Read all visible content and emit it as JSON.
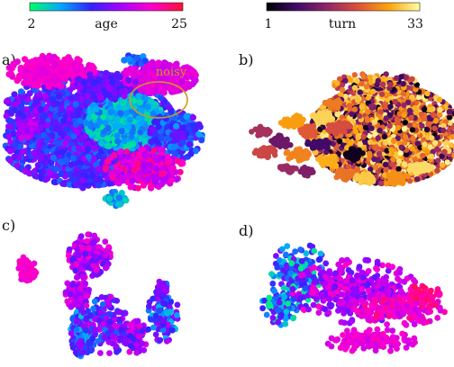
{
  "colorbars": [
    {
      "label": "age",
      "min_label": "2",
      "max_label": "25",
      "range": [
        2,
        25
      ],
      "stops": [
        "#00ff66",
        "#00aaff",
        "#3322ff",
        "#aa00ff",
        "#ff00cc",
        "#ff1133"
      ]
    },
    {
      "label": "turn",
      "min_label": "1",
      "max_label": "33",
      "range": [
        1,
        33
      ],
      "stops": [
        "#000004",
        "#420a68",
        "#932667",
        "#dd513a",
        "#fca50a",
        "#fcffa4"
      ]
    }
  ],
  "panels": [
    {
      "label": "a)",
      "colormap": "age",
      "annotation": "noisy"
    },
    {
      "label": "b)",
      "colormap": "turn",
      "annotation": ""
    },
    {
      "label": "c)",
      "colormap": "age",
      "annotation": ""
    },
    {
      "label": "d)",
      "colormap": "age",
      "annotation": ""
    }
  ],
  "chart_data": [
    {
      "type": "scatter",
      "panel": "a)",
      "title": "",
      "xlabel": "",
      "ylabel": "",
      "color_by": "age",
      "annotation": "noisy",
      "clusters": [
        {
          "cx": -0.2,
          "cy": 0.05,
          "sx": 0.42,
          "sy": 0.33,
          "n": 2600,
          "c": [
            0.28,
            0.62
          ]
        },
        {
          "cx": 0.2,
          "cy": 0.15,
          "sx": 0.18,
          "sy": 0.16,
          "n": 600,
          "c": [
            0.05,
            0.3
          ]
        },
        {
          "cx": -0.55,
          "cy": 0.8,
          "sx": 0.2,
          "sy": 0.09,
          "n": 300,
          "c": [
            0.72,
            0.82
          ]
        },
        {
          "cx": 0.55,
          "cy": 0.72,
          "sx": 0.17,
          "sy": 0.09,
          "n": 300,
          "c": [
            0.66,
            0.78
          ]
        },
        {
          "cx": 0.72,
          "cy": -0.03,
          "sx": 0.12,
          "sy": 0.14,
          "n": 350,
          "c": [
            0.2,
            0.55
          ]
        },
        {
          "cx": 0.4,
          "cy": -0.45,
          "sx": 0.18,
          "sy": 0.12,
          "n": 300,
          "c": [
            0.6,
            0.9
          ]
        },
        {
          "cx": -0.2,
          "cy": -0.6,
          "sx": 0.08,
          "sy": 0.05,
          "n": 60,
          "c": [
            0.35,
            0.55
          ]
        },
        {
          "cx": -0.8,
          "cy": 0.05,
          "sx": 0.05,
          "sy": 0.06,
          "n": 40,
          "c": [
            0.55,
            0.7
          ]
        },
        {
          "cx": 0.1,
          "cy": -0.85,
          "sx": 0.06,
          "sy": 0.04,
          "n": 40,
          "c": [
            0.1,
            0.3
          ]
        },
        {
          "cx": 0.3,
          "cy": 0.95,
          "sx": 0.05,
          "sy": 0.03,
          "n": 25,
          "c": [
            0.2,
            0.4
          ]
        },
        {
          "cx": 0.0,
          "cy": 0.6,
          "sx": 0.15,
          "sy": 0.08,
          "n": 150,
          "c": [
            0.4,
            0.6
          ]
        }
      ]
    },
    {
      "type": "scatter",
      "panel": "b)",
      "title": "",
      "xlabel": "",
      "ylabel": "",
      "color_by": "turn",
      "clusters": [
        {
          "cx": 0.35,
          "cy": 0.1,
          "sx": 0.33,
          "sy": 0.33,
          "n": 2500,
          "c": [
            0.0,
            0.95
          ],
          "mode": "mixed"
        },
        {
          "cx": 0.25,
          "cy": 0.85,
          "sx": 0.18,
          "sy": 0.07,
          "n": 200,
          "c": [
            0.0,
            0.9
          ],
          "mode": "mixed"
        },
        {
          "cx": -0.4,
          "cy": 0.15,
          "sx": 0.05,
          "sy": 0.04,
          "n": 45,
          "c": [
            0.62,
            0.62
          ]
        },
        {
          "cx": -0.55,
          "cy": 0.3,
          "sx": 0.05,
          "sy": 0.04,
          "n": 45,
          "c": [
            0.78,
            0.78
          ]
        },
        {
          "cx": -0.25,
          "cy": 0.35,
          "sx": 0.05,
          "sy": 0.04,
          "n": 45,
          "c": [
            0.9,
            0.9
          ]
        },
        {
          "cx": -0.65,
          "cy": 0.0,
          "sx": 0.05,
          "sy": 0.04,
          "n": 45,
          "c": [
            0.3,
            0.3
          ]
        },
        {
          "cx": -0.5,
          "cy": -0.2,
          "sx": 0.05,
          "sy": 0.04,
          "n": 45,
          "c": [
            0.72,
            0.72
          ]
        },
        {
          "cx": -0.3,
          "cy": -0.05,
          "sx": 0.05,
          "sy": 0.04,
          "n": 45,
          "c": [
            0.2,
            0.2
          ]
        },
        {
          "cx": -0.8,
          "cy": -0.15,
          "sx": 0.05,
          "sy": 0.04,
          "n": 45,
          "c": [
            0.55,
            0.55
          ]
        },
        {
          "cx": -0.85,
          "cy": 0.15,
          "sx": 0.04,
          "sy": 0.03,
          "n": 30,
          "c": [
            0.45,
            0.45
          ]
        },
        {
          "cx": -0.2,
          "cy": -0.3,
          "sx": 0.05,
          "sy": 0.04,
          "n": 45,
          "c": [
            0.82,
            0.82
          ]
        },
        {
          "cx": -0.05,
          "cy": -0.5,
          "sx": 0.05,
          "sy": 0.04,
          "n": 45,
          "c": [
            0.68,
            0.68
          ]
        },
        {
          "cx": 0.15,
          "cy": -0.55,
          "sx": 0.05,
          "sy": 0.04,
          "n": 45,
          "c": [
            0.88,
            0.88
          ]
        },
        {
          "cx": 0.45,
          "cy": -0.55,
          "sx": 0.05,
          "sy": 0.04,
          "n": 45,
          "c": [
            0.75,
            0.75
          ]
        },
        {
          "cx": 0.68,
          "cy": -0.4,
          "sx": 0.05,
          "sy": 0.04,
          "n": 45,
          "c": [
            0.92,
            0.92
          ]
        },
        {
          "cx": -0.4,
          "cy": -0.45,
          "sx": 0.04,
          "sy": 0.03,
          "n": 35,
          "c": [
            0.35,
            0.35
          ]
        },
        {
          "cx": -0.1,
          "cy": 0.2,
          "sx": 0.05,
          "sy": 0.04,
          "n": 40,
          "c": [
            0.58,
            0.58
          ]
        },
        {
          "cx": -0.15,
          "cy": 0.55,
          "sx": 0.04,
          "sy": 0.03,
          "n": 30,
          "c": [
            0.7,
            0.7
          ]
        },
        {
          "cx": -0.6,
          "cy": -0.4,
          "sx": 0.04,
          "sy": 0.03,
          "n": 30,
          "c": [
            0.42,
            0.42
          ]
        },
        {
          "cx": 0.02,
          "cy": -0.2,
          "sx": 0.05,
          "sy": 0.04,
          "n": 40,
          "c": [
            0.05,
            0.05
          ]
        }
      ]
    },
    {
      "type": "scatter",
      "panel": "c)",
      "title": "",
      "xlabel": "",
      "ylabel": "",
      "color_by": "age",
      "clusters": [
        {
          "cx": -0.8,
          "cy": 0.35,
          "sx": 0.05,
          "sy": 0.08,
          "n": 60,
          "c": [
            0.74,
            0.84
          ]
        },
        {
          "cx": -0.13,
          "cy": 0.55,
          "sx": 0.1,
          "sy": 0.14,
          "n": 200,
          "c": [
            0.45,
            0.8
          ]
        },
        {
          "cx": -0.25,
          "cy": 0.0,
          "sx": 0.06,
          "sy": 0.12,
          "n": 110,
          "c": [
            0.5,
            0.78
          ]
        },
        {
          "cx": -0.2,
          "cy": -0.6,
          "sx": 0.06,
          "sy": 0.16,
          "n": 180,
          "c": [
            0.1,
            0.6
          ]
        },
        {
          "cx": 0.05,
          "cy": -0.5,
          "sx": 0.1,
          "sy": 0.2,
          "n": 160,
          "c": [
            0.25,
            0.72
          ]
        },
        {
          "cx": 0.35,
          "cy": -0.65,
          "sx": 0.07,
          "sy": 0.12,
          "n": 80,
          "c": [
            0.35,
            0.75
          ]
        },
        {
          "cx": 0.65,
          "cy": -0.3,
          "sx": 0.07,
          "sy": 0.2,
          "n": 120,
          "c": [
            0.15,
            0.65
          ]
        },
        {
          "cx": 0.62,
          "cy": 0.05,
          "sx": 0.03,
          "sy": 0.05,
          "n": 20,
          "c": [
            0.5,
            0.6
          ]
        }
      ]
    },
    {
      "type": "scatter",
      "panel": "d)",
      "title": "",
      "xlabel": "",
      "ylabel": "",
      "color_by": "age",
      "clusters": [
        {
          "cx": -0.45,
          "cy": 0.4,
          "sx": 0.13,
          "sy": 0.22,
          "n": 190,
          "c": [
            0.05,
            0.55
          ]
        },
        {
          "cx": -0.65,
          "cy": -0.1,
          "sx": 0.08,
          "sy": 0.12,
          "n": 90,
          "c": [
            0.0,
            0.55
          ]
        },
        {
          "cx": 0.1,
          "cy": 0.15,
          "sx": 0.28,
          "sy": 0.22,
          "n": 380,
          "c": [
            0.45,
            0.82
          ]
        },
        {
          "cx": 0.55,
          "cy": -0.1,
          "sx": 0.2,
          "sy": 0.12,
          "n": 180,
          "c": [
            0.65,
            0.9
          ]
        },
        {
          "cx": 0.25,
          "cy": -0.6,
          "sx": 0.2,
          "sy": 0.08,
          "n": 140,
          "c": [
            0.68,
            0.82
          ]
        },
        {
          "cx": 0.8,
          "cy": 0.1,
          "sx": 0.08,
          "sy": 0.08,
          "n": 60,
          "c": [
            0.82,
            0.95
          ]
        }
      ]
    }
  ]
}
